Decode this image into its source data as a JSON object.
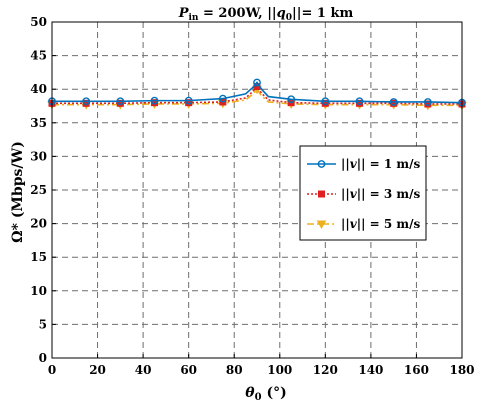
{
  "chart_data": {
    "type": "line",
    "title": "P_in = 200W, ||q0|| = 1 km",
    "title_parts": {
      "p": "P",
      "p_sub": "in",
      "eq": " = 200W, ",
      "norm_open": "||",
      "q": "q",
      "q_sub": "0",
      "norm_close": "||= 1 km"
    },
    "xlabel": "θ0 (°)",
    "xlabel_parts": {
      "theta": "θ",
      "sub": "0",
      "unit": " (°)"
    },
    "ylabel": "Ω* (Mbps/W)",
    "xlim": [
      0,
      180
    ],
    "ylim": [
      0,
      50
    ],
    "xticks": [
      0,
      20,
      40,
      60,
      80,
      100,
      120,
      140,
      160,
      180
    ],
    "yticks": [
      0,
      5,
      10,
      15,
      20,
      25,
      30,
      35,
      40,
      45,
      50
    ],
    "grid": true,
    "legend_position": "middle-right",
    "series": [
      {
        "name": "||v|| = 1 m/s",
        "label_parts": {
          "open": "||",
          "v": "v",
          "close": "|| = 1 m/s"
        },
        "color": "#0072BD",
        "line_style": "solid",
        "marker": "circle",
        "x": [
          0,
          15,
          30,
          45,
          60,
          75,
          85,
          88,
          90,
          92,
          95,
          105,
          120,
          135,
          150,
          165,
          180
        ],
        "y": [
          38.2,
          38.2,
          38.2,
          38.3,
          38.3,
          38.6,
          39.3,
          40.2,
          41.0,
          40.0,
          38.9,
          38.5,
          38.2,
          38.2,
          38.1,
          38.1,
          38.0
        ],
        "marker_x": [
          0,
          15,
          30,
          45,
          60,
          75,
          90,
          105,
          120,
          135,
          150,
          165,
          180
        ],
        "marker_y": [
          38.2,
          38.2,
          38.2,
          38.3,
          38.3,
          38.6,
          41.0,
          38.5,
          38.2,
          38.2,
          38.1,
          38.1,
          38.0
        ]
      },
      {
        "name": "||v|| = 3 m/s",
        "label_parts": {
          "open": "||",
          "v": "v",
          "close": "|| = 3 m/s"
        },
        "color": "#E02020",
        "line_style": "dotted",
        "marker": "square",
        "x": [
          0,
          15,
          30,
          45,
          60,
          75,
          85,
          88,
          90,
          92,
          95,
          105,
          120,
          135,
          150,
          165,
          180
        ],
        "y": [
          37.9,
          37.9,
          37.9,
          38.0,
          38.0,
          38.1,
          38.7,
          39.6,
          40.4,
          39.4,
          38.4,
          38.0,
          37.9,
          37.9,
          37.9,
          37.8,
          37.8
        ],
        "marker_x": [
          0,
          15,
          30,
          45,
          60,
          75,
          90,
          105,
          120,
          135,
          150,
          165,
          180
        ],
        "marker_y": [
          37.9,
          37.9,
          37.9,
          38.0,
          38.0,
          38.1,
          40.4,
          38.0,
          37.9,
          37.9,
          37.9,
          37.8,
          37.8
        ]
      },
      {
        "name": "||v|| = 5 m/s",
        "label_parts": {
          "open": "||",
          "v": "v",
          "close": "|| = 5 m/s"
        },
        "color": "#EDB120",
        "line_style": "dashdot",
        "marker": "triangle-down",
        "x": [
          0,
          15,
          30,
          45,
          60,
          75,
          85,
          88,
          90,
          92,
          95,
          105,
          120,
          135,
          150,
          165,
          180
        ],
        "y": [
          37.7,
          37.7,
          37.7,
          37.8,
          37.8,
          37.9,
          38.4,
          39.2,
          40.0,
          39.0,
          38.1,
          37.8,
          37.7,
          37.7,
          37.7,
          37.6,
          37.6
        ],
        "marker_x": [
          0,
          15,
          30,
          45,
          60,
          75,
          90,
          105,
          120,
          135,
          150,
          165,
          180
        ],
        "marker_y": [
          37.7,
          37.7,
          37.7,
          37.8,
          37.8,
          37.9,
          40.0,
          37.8,
          37.7,
          37.7,
          37.7,
          37.6,
          37.6
        ]
      }
    ]
  }
}
